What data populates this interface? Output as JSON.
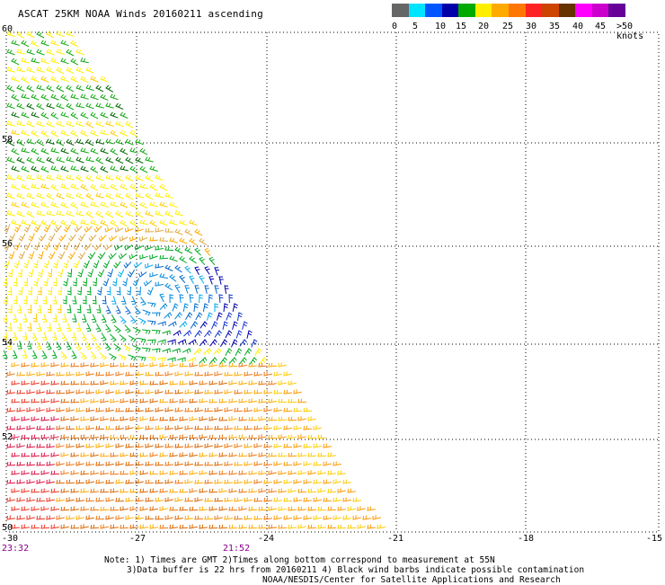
{
  "title": "ASCAT 25KM NOAA Winds 20160211 ascending",
  "legend": {
    "colors": [
      "#666666",
      "#00e5ff",
      "#0055ff",
      "#0000aa",
      "#00aa00",
      "#ffee00",
      "#ffaa00",
      "#ff7700",
      "#ff2222",
      "#cc4400",
      "#663300",
      "#ff00ff",
      "#cc00cc",
      "#660099"
    ],
    "labels": [
      "0",
      "5",
      "10",
      "15",
      "20",
      "25",
      "30",
      "35",
      "40",
      "45",
      ">50 knots"
    ]
  },
  "axes": {
    "lon_ticks": [
      "-30",
      "-27",
      "-24",
      "-21",
      "-18",
      "-15"
    ],
    "lat_ticks": [
      "60",
      "58",
      "56",
      "54",
      "52",
      "50"
    ]
  },
  "times": {
    "t1": "23:32",
    "t2": "21:52"
  },
  "notes": {
    "line1": "Note: 1) Times are GMT 2)Times along bottom correspond to measurement at 55N",
    "line2": "3)Data buffer is 22 hrs from 20160211 4) Black wind barbs indicate possible contamination",
    "line3": "NOAA/NESDIS/Center for Satellite Applications and Research"
  }
}
